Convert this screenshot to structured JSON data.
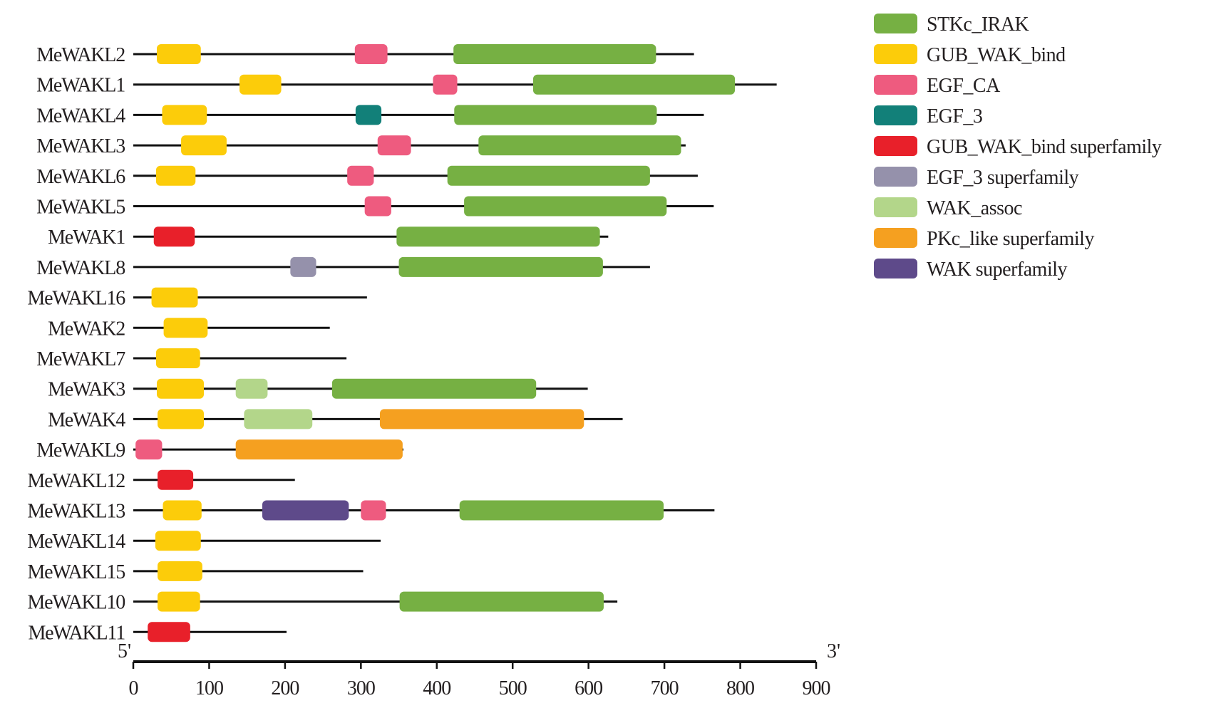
{
  "chart_data": {
    "type": "domain-architecture",
    "xlim": [
      0,
      900
    ],
    "xticks": [
      0,
      100,
      200,
      300,
      400,
      500,
      600,
      700,
      800,
      900
    ],
    "end_labels": {
      "left": "5'",
      "right": "3'"
    },
    "legend": [
      {
        "key": "STKc_IRAK",
        "label": "STKc_IRAK",
        "color": "#76b043"
      },
      {
        "key": "GUB_WAK_bind",
        "label": "GUB_WAK_bind",
        "color": "#fccc0a"
      },
      {
        "key": "EGF_CA",
        "label": "EGF_CA",
        "color": "#ee5b7f"
      },
      {
        "key": "EGF_3",
        "label": "EGF_3",
        "color": "#128079"
      },
      {
        "key": "GUB_sf",
        "label": "GUB_WAK_bind superfamily",
        "color": "#e8202a"
      },
      {
        "key": "EGF3_sf",
        "label": "EGF_3 superfamily",
        "color": "#9591ab"
      },
      {
        "key": "WAK_assoc",
        "label": "WAK_assoc",
        "color": "#b3d68a"
      },
      {
        "key": "PKc_sf",
        "label": "PKc_like superfamily",
        "color": "#f5a020"
      },
      {
        "key": "WAK_sf",
        "label": "WAK superfamily",
        "color": "#5e4a8a"
      }
    ],
    "proteins": [
      {
        "name": "MeWAKL2",
        "length": 739,
        "domains": [
          [
            "GUB_WAK_bind",
            31,
            89
          ],
          [
            "EGF_CA",
            292,
            335
          ],
          [
            "STKc_IRAK",
            422,
            689
          ]
        ]
      },
      {
        "name": "MeWAKL1",
        "length": 848,
        "domains": [
          [
            "GUB_WAK_bind",
            140,
            195
          ],
          [
            "EGF_CA",
            395,
            427
          ],
          [
            "STKc_IRAK",
            527,
            793
          ]
        ]
      },
      {
        "name": "MeWAKL4",
        "length": 752,
        "domains": [
          [
            "GUB_WAK_bind",
            38,
            97
          ],
          [
            "EGF_3",
            293,
            327
          ],
          [
            "STKc_IRAK",
            423,
            690
          ]
        ]
      },
      {
        "name": "MeWAKL3",
        "length": 728,
        "domains": [
          [
            "GUB_WAK_bind",
            63,
            123
          ],
          [
            "EGF_CA",
            322,
            366
          ],
          [
            "STKc_IRAK",
            455,
            722
          ]
        ]
      },
      {
        "name": "MeWAKL6",
        "length": 744,
        "domains": [
          [
            "GUB_WAK_bind",
            30,
            82
          ],
          [
            "EGF_CA",
            282,
            317
          ],
          [
            "STKc_IRAK",
            414,
            681
          ]
        ]
      },
      {
        "name": "MeWAKL5",
        "length": 765,
        "domains": [
          [
            "EGF_CA",
            305,
            340
          ],
          [
            "STKc_IRAK",
            436,
            703
          ]
        ]
      },
      {
        "name": "MeWAK1",
        "length": 626,
        "domains": [
          [
            "GUB_sf",
            27,
            81
          ],
          [
            "STKc_IRAK",
            347,
            615
          ]
        ]
      },
      {
        "name": "MeWAKL8",
        "length": 681,
        "domains": [
          [
            "EGF3_sf",
            207,
            241
          ],
          [
            "STKc_IRAK",
            350,
            619
          ]
        ]
      },
      {
        "name": "MeWAKL16",
        "length": 308,
        "domains": [
          [
            "GUB_WAK_bind",
            24,
            85
          ]
        ]
      },
      {
        "name": "MeWAK2",
        "length": 259,
        "domains": [
          [
            "GUB_WAK_bind",
            40,
            98
          ]
        ]
      },
      {
        "name": "MeWAKL7",
        "length": 281,
        "domains": [
          [
            "GUB_WAK_bind",
            30,
            88
          ]
        ]
      },
      {
        "name": "MeWAK3",
        "length": 599,
        "domains": [
          [
            "GUB_WAK_bind",
            31,
            93
          ],
          [
            "WAK_assoc",
            135,
            177
          ],
          [
            "STKc_IRAK",
            262,
            531
          ]
        ]
      },
      {
        "name": "MeWAK4",
        "length": 645,
        "domains": [
          [
            "GUB_WAK_bind",
            32,
            93
          ],
          [
            "WAK_assoc",
            146,
            236
          ],
          [
            "PKc_sf",
            325,
            594
          ]
        ]
      },
      {
        "name": "MeWAKL9",
        "length": 356,
        "domains": [
          [
            "EGF_CA",
            3,
            38
          ],
          [
            "PKc_sf",
            135,
            355
          ]
        ]
      },
      {
        "name": "MeWAKL12",
        "length": 213,
        "domains": [
          [
            "GUB_sf",
            32,
            79
          ]
        ]
      },
      {
        "name": "MeWAKL13",
        "length": 766,
        "domains": [
          [
            "GUB_WAK_bind",
            39,
            90
          ],
          [
            "WAK_sf",
            170,
            284
          ],
          [
            "EGF_CA",
            300,
            333
          ],
          [
            "STKc_IRAK",
            430,
            699
          ]
        ]
      },
      {
        "name": "MeWAKL14",
        "length": 326,
        "domains": [
          [
            "GUB_WAK_bind",
            29,
            89
          ]
        ]
      },
      {
        "name": "MeWAKL15",
        "length": 303,
        "domains": [
          [
            "GUB_WAK_bind",
            32,
            91
          ]
        ]
      },
      {
        "name": "MeWAKL10",
        "length": 638,
        "domains": [
          [
            "GUB_WAK_bind",
            32,
            88
          ],
          [
            "STKc_IRAK",
            351,
            620
          ]
        ]
      },
      {
        "name": "MeWAKL11",
        "length": 202,
        "domains": [
          [
            "GUB_sf",
            19,
            75
          ]
        ]
      }
    ]
  }
}
